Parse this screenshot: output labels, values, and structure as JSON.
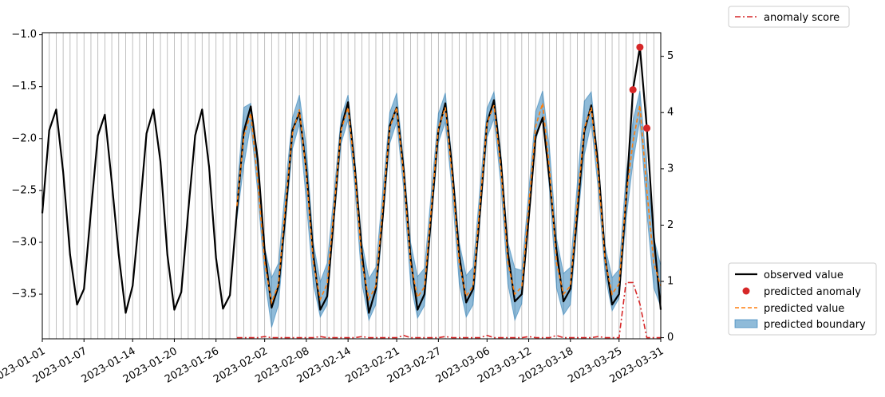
{
  "chart_data": {
    "type": "line",
    "x_start": "2023-01-01",
    "x_end": "2023-03-31",
    "x_tick_labels": [
      "2023-01-01",
      "2023-01-07",
      "2023-01-14",
      "2023-01-20",
      "2023-01-26",
      "2023-02-02",
      "2023-02-08",
      "2023-02-14",
      "2023-02-21",
      "2023-02-27",
      "2023-03-06",
      "2023-03-12",
      "2023-03-18",
      "2023-03-25",
      "2023-03-31"
    ],
    "x_tick_dates": [
      "2023-01-01",
      "2023-01-07",
      "2023-01-14",
      "2023-01-20",
      "2023-01-26",
      "2023-02-02",
      "2023-02-08",
      "2023-02-14",
      "2023-02-21",
      "2023-02-27",
      "2023-03-06",
      "2023-03-12",
      "2023-03-18",
      "2023-03-25",
      "2023-03-31"
    ],
    "y_left": {
      "range": [
        -3.93,
        -0.98
      ],
      "ticks": [
        -1.0,
        -1.5,
        -2.0,
        -2.5,
        -3.0,
        -3.5
      ],
      "tick_labels": [
        "−1.0",
        "−1.5",
        "−2.0",
        "−2.5",
        "−3.0",
        "−3.5"
      ]
    },
    "y_right": {
      "range": [
        -0.02,
        5.42
      ],
      "ticks": [
        0,
        1,
        2,
        3,
        4,
        5
      ],
      "tick_labels": [
        "0",
        "1",
        "2",
        "3",
        "4",
        "5"
      ]
    },
    "grid": "vertical",
    "observed": [
      -2.72,
      -1.92,
      -1.72,
      -2.32,
      -3.12,
      -3.6,
      -3.45,
      -2.7,
      -1.97,
      -1.77,
      -2.42,
      -3.12,
      -3.68,
      -3.42,
      -2.72,
      -1.95,
      -1.72,
      -2.22,
      -3.12,
      -3.65,
      -3.48,
      -2.7,
      -1.97,
      -1.72,
      -2.27,
      -3.15,
      -3.64,
      -3.51,
      -2.7,
      -1.93,
      -1.69,
      -2.2,
      -3.08,
      -3.63,
      -3.42,
      -2.72,
      -1.92,
      -1.75,
      -2.3,
      -3.12,
      -3.65,
      -3.52,
      -2.72,
      -1.9,
      -1.65,
      -2.3,
      -3.1,
      -3.68,
      -3.45,
      -2.75,
      -1.88,
      -1.7,
      -2.3,
      -3.15,
      -3.65,
      -3.5,
      -2.72,
      -1.92,
      -1.66,
      -2.3,
      -3.12,
      -3.58,
      -3.45,
      -2.7,
      -1.85,
      -1.63,
      -2.22,
      -3.1,
      -3.57,
      -3.5,
      -2.77,
      -1.98,
      -1.8,
      -2.4,
      -3.08,
      -3.57,
      -3.45,
      -2.72,
      -1.93,
      -1.68,
      -2.25,
      -3.15,
      -3.6,
      -3.5,
      -2.6,
      -1.53,
      -1.12,
      -1.9,
      -2.95,
      -3.65
    ],
    "predicted": {
      "start_index": 28,
      "values": [
        -2.65,
        -1.98,
        -1.76,
        -2.4,
        -3.2,
        -3.58,
        -3.4,
        -2.63,
        -1.95,
        -1.72,
        -2.35,
        -3.2,
        -3.55,
        -3.4,
        -2.65,
        -1.92,
        -1.7,
        -2.35,
        -3.2,
        -3.55,
        -3.42,
        -2.65,
        -1.9,
        -1.7,
        -2.35,
        -3.2,
        -3.53,
        -3.43,
        -2.65,
        -1.9,
        -1.7,
        -2.38,
        -3.2,
        -3.52,
        -3.42,
        -2.62,
        -1.85,
        -1.68,
        -2.3,
        -3.2,
        -3.5,
        -3.43,
        -2.65,
        -1.88,
        -1.66,
        -2.3,
        -3.2,
        -3.5,
        -3.42,
        -2.62,
        -1.9,
        -1.7,
        -2.35,
        -3.18,
        -3.5,
        -3.4,
        -2.57,
        -2.03,
        -1.68,
        -2.5,
        -3.2,
        -3.42
      ]
    },
    "boundary_halfwidth": [
      0.13,
      0.28,
      0.1,
      0.12,
      0.15,
      0.24,
      0.2,
      0.18,
      0.15,
      0.14,
      0.27,
      0.2,
      0.17,
      0.2,
      0.14,
      0.13,
      0.12,
      0.14,
      0.2,
      0.2,
      0.18,
      0.15,
      0.15,
      0.14,
      0.14,
      0.2,
      0.2,
      0.18,
      0.15,
      0.14,
      0.14,
      0.15,
      0.2,
      0.2,
      0.18,
      0.15,
      0.14,
      0.13,
      0.15,
      0.2,
      0.25,
      0.16,
      0.14,
      0.14,
      0.12,
      0.2,
      0.24,
      0.2,
      0.18,
      0.2,
      0.26,
      0.15,
      0.14,
      0.14,
      0.16,
      0.14,
      0.22,
      0.2,
      0.14,
      0.22,
      0.24,
      0.2
    ],
    "anomaly_score": {
      "start_index": 28,
      "values": [
        0,
        0,
        0,
        0,
        0.02,
        0,
        0,
        0,
        0,
        0,
        0,
        0,
        0.02,
        0,
        0,
        0,
        0,
        0,
        0.02,
        0,
        0,
        0,
        0,
        0,
        0.04,
        0,
        0,
        0,
        0,
        0,
        0.02,
        0,
        0,
        0,
        0,
        0,
        0.04,
        0,
        0,
        0,
        0,
        0,
        0.02,
        0,
        0,
        0,
        0.04,
        0,
        0,
        0,
        0,
        0,
        0.02,
        0,
        0,
        0,
        0.98,
        0.98,
        0.6,
        0,
        0,
        0
      ]
    },
    "anomalies": [
      {
        "index": 85,
        "value": -1.53
      },
      {
        "index": 86,
        "value": -1.12
      },
      {
        "index": 87,
        "value": -1.9
      }
    ],
    "legend_upper": {
      "placement": "top-right outside",
      "entries": [
        "anomaly score"
      ]
    },
    "legend_lower": {
      "placement": "bottom-right outside",
      "entries": [
        "observed value",
        "predicted anomaly",
        "predicted value",
        "predicted boundary"
      ]
    }
  },
  "colors": {
    "observed": "#000000",
    "predicted": "#ff7f0e",
    "boundary": "#1f77b4",
    "anomaly": "#d62728",
    "grid": "#b0b0b0"
  }
}
